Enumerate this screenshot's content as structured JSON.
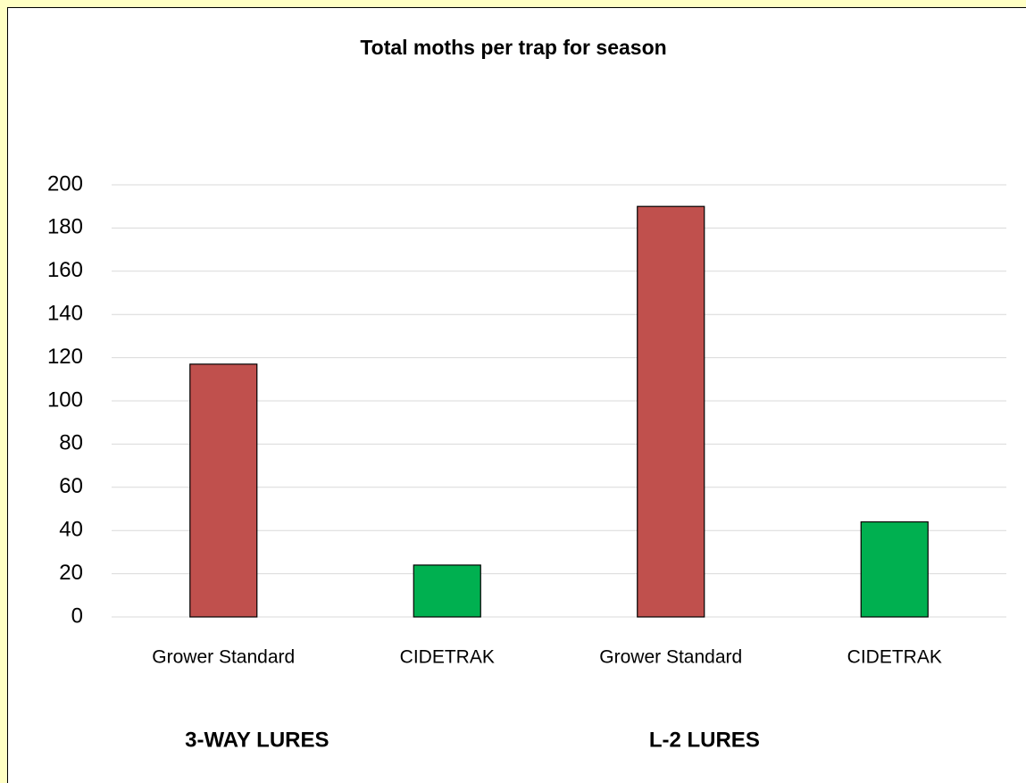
{
  "chart_data": {
    "type": "bar",
    "title": "Total moths per trap for season",
    "categories": [
      "Grower Standard",
      "CIDETRAK",
      "Grower Standard",
      "CIDETRAK"
    ],
    "values": [
      117,
      24,
      190,
      44
    ],
    "colors": [
      "#c0504d",
      "#00b050",
      "#c0504d",
      "#00b050"
    ],
    "group_labels": [
      "3-WAY LURES",
      "L-2 LURES"
    ],
    "ylim": [
      0,
      200
    ],
    "yticks": [
      0,
      20,
      40,
      60,
      80,
      100,
      120,
      140,
      160,
      180,
      200
    ],
    "grid": true
  }
}
